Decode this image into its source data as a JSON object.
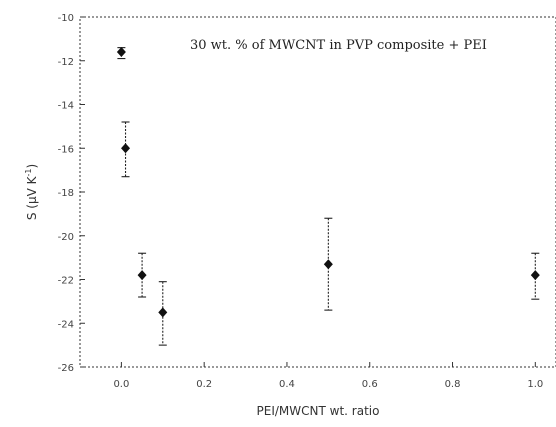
{
  "chart_data": {
    "type": "scatter",
    "title": "",
    "annotation": "30 wt. % of MWCNT in PVP composite + PEI",
    "xlabel": "PEI/MWCNT wt. ratio",
    "ylabel_main": "S (μV K",
    "ylabel_sup": "-1",
    "ylabel_close": ")",
    "xlim": [
      -0.1,
      1.05
    ],
    "ylim": [
      -26,
      -10
    ],
    "x_ticks": [
      0.0,
      0.2,
      0.4,
      0.6,
      0.8,
      1.0
    ],
    "x_tick_labels": [
      "0.0",
      "0.2",
      "0.4",
      "0.6",
      "0.8",
      "1.0"
    ],
    "y_ticks": [
      -10,
      -12,
      -14,
      -16,
      -18,
      -20,
      -22,
      -24,
      -26
    ],
    "y_tick_labels": [
      "-10",
      "-12",
      "-14",
      "-16",
      "-18",
      "-20",
      "-22",
      "-24",
      "-26"
    ],
    "grid": false,
    "series": [
      {
        "x": [
          0.0,
          0.01,
          0.05,
          0.1,
          0.5,
          1.0
        ],
        "y": [
          -11.6,
          -16.0,
          -21.8,
          -23.5,
          -21.3,
          -21.8
        ],
        "err_low": [
          -11.9,
          -17.3,
          -22.8,
          -25.0,
          -23.4,
          -22.9
        ],
        "err_high": [
          -11.4,
          -14.8,
          -20.8,
          -22.1,
          -19.2,
          -20.8
        ]
      }
    ]
  }
}
